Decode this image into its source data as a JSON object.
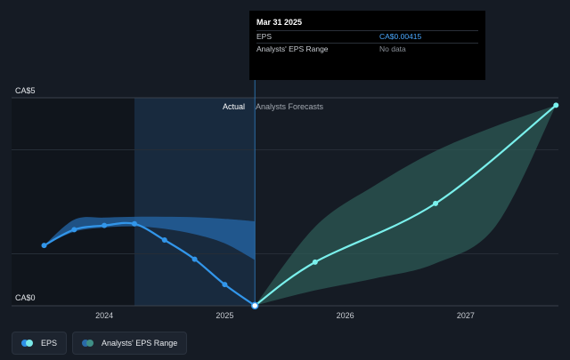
{
  "tooltip": {
    "date": "Mar 31 2025",
    "rows": [
      {
        "label": "EPS",
        "value": "CA$0.00415"
      },
      {
        "label": "Analysts' EPS Range",
        "value": "No data"
      }
    ]
  },
  "section_labels": {
    "actual": "Actual",
    "forecast": "Analysts Forecasts"
  },
  "legend": [
    {
      "label": "EPS",
      "colors": [
        "#2e8fe6",
        "#7ae8e8"
      ]
    },
    {
      "label": "Analysts' EPS Range",
      "colors": [
        "#2a6aa8",
        "#3f8f86"
      ]
    }
  ],
  "colors": {
    "background": "#151b24",
    "eps_actual": "#3296ea",
    "eps_forecast": "#7af0ec",
    "range_actual": "#2467a8",
    "range_forecast": "#2d5c58",
    "highlight": "#1b3653"
  },
  "chart_data": {
    "type": "line",
    "yaxis": {
      "ticks": [
        "CA$0",
        "CA$5"
      ],
      "range": [
        0,
        5
      ]
    },
    "xaxis": {
      "ticks": [
        {
          "label": "2024",
          "x": 2024.0
        },
        {
          "label": "2025",
          "x": 2025.0
        },
        {
          "label": "2026",
          "x": 2026.0
        },
        {
          "label": "2027",
          "x": 2027.0
        }
      ],
      "range": [
        2023.23,
        2027.77
      ]
    },
    "series": [
      {
        "name": "EPS",
        "segment": "actual",
        "x": [
          2023.5,
          2023.75,
          2024.0,
          2024.25,
          2024.5,
          2024.75,
          2025.0,
          2025.25
        ],
        "y": [
          1.45,
          1.83,
          1.93,
          1.97,
          1.58,
          1.12,
          0.51,
          0.004
        ]
      },
      {
        "name": "EPS",
        "segment": "forecast",
        "x": [
          2025.25,
          2025.75,
          2026.75,
          2027.75
        ],
        "y": [
          0.004,
          1.05,
          2.46,
          4.82
        ]
      }
    ],
    "range_band": {
      "name": "Analysts' EPS Range",
      "actual": {
        "x": [
          2023.5,
          2023.75,
          2024.0,
          2024.25,
          2024.5,
          2024.75,
          2025.0,
          2025.25
        ],
        "low": [
          1.45,
          1.78,
          1.88,
          1.91,
          1.85,
          1.72,
          1.5,
          1.1
        ],
        "high": [
          1.45,
          2.07,
          2.12,
          2.14,
          2.14,
          2.13,
          2.09,
          2.03
        ]
      },
      "forecast": {
        "x": [
          2025.25,
          2025.75,
          2026.25,
          2026.75,
          2027.25,
          2027.75
        ],
        "low": [
          0.004,
          0.37,
          0.66,
          1.02,
          1.92,
          4.82
        ],
        "high": [
          0.004,
          1.9,
          2.9,
          3.72,
          4.32,
          4.82
        ]
      }
    },
    "highlight_x": 2025.25,
    "past_region_start": 2024.25
  }
}
